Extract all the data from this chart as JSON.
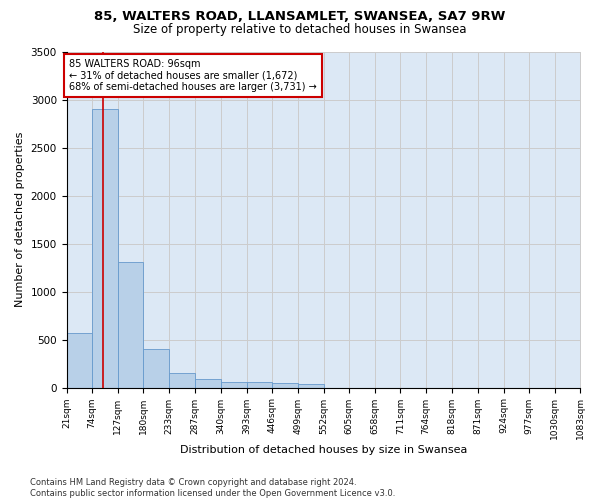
{
  "title_line1": "85, WALTERS ROAD, LLANSAMLET, SWANSEA, SA7 9RW",
  "title_line2": "Size of property relative to detached houses in Swansea",
  "xlabel": "Distribution of detached houses by size in Swansea",
  "ylabel": "Number of detached properties",
  "bar_color": "#b8d0e8",
  "bar_edge_color": "#6699cc",
  "grid_color": "#cccccc",
  "background_color": "#dce8f5",
  "annotation_text": "85 WALTERS ROAD: 96sqm\n← 31% of detached houses are smaller (1,672)\n68% of semi-detached houses are larger (3,731) →",
  "annotation_box_color": "#ffffff",
  "annotation_box_edge": "#cc0000",
  "vline_x": 96,
  "vline_color": "#cc0000",
  "bins": [
    21,
    74,
    127,
    180,
    233,
    287,
    340,
    393,
    446,
    499,
    552,
    605,
    658,
    711,
    764,
    818,
    871,
    924,
    977,
    1030,
    1083
  ],
  "bar_heights": [
    570,
    2900,
    1310,
    400,
    155,
    85,
    60,
    55,
    45,
    38,
    0,
    0,
    0,
    0,
    0,
    0,
    0,
    0,
    0,
    0
  ],
  "tick_labels": [
    "21sqm",
    "74sqm",
    "127sqm",
    "180sqm",
    "233sqm",
    "287sqm",
    "340sqm",
    "393sqm",
    "446sqm",
    "499sqm",
    "552sqm",
    "605sqm",
    "658sqm",
    "711sqm",
    "764sqm",
    "818sqm",
    "871sqm",
    "924sqm",
    "977sqm",
    "1030sqm",
    "1083sqm"
  ],
  "ylim": [
    0,
    3500
  ],
  "yticks": [
    0,
    500,
    1000,
    1500,
    2000,
    2500,
    3000,
    3500
  ],
  "footer_text": "Contains HM Land Registry data © Crown copyright and database right 2024.\nContains public sector information licensed under the Open Government Licence v3.0.",
  "title_fontsize": 9.5,
  "subtitle_fontsize": 8.5,
  "ylabel_fontsize": 8,
  "xlabel_fontsize": 8,
  "tick_fontsize": 6.5,
  "ytick_fontsize": 7.5,
  "annotation_fontsize": 7,
  "footer_fontsize": 6
}
